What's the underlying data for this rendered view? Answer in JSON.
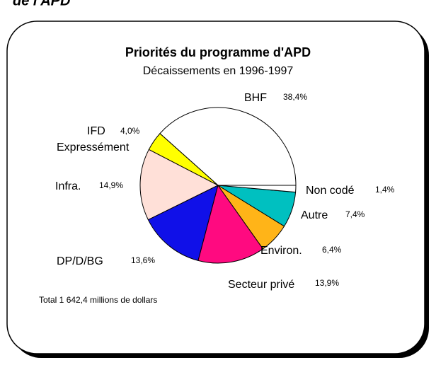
{
  "header_text": "de l'APD",
  "chart_data": {
    "type": "pie",
    "title": "Priorités du programme d'APD",
    "subtitle": "Décaissements en 1996-1997",
    "categories": [
      "BHF",
      "IFD\nExpressément",
      "Infra.",
      "DP/D/BG",
      "Secteur privé",
      "Environ.",
      "Autre",
      "Non codé"
    ],
    "values": [
      38.4,
      4.0,
      14.9,
      13.6,
      13.9,
      6.4,
      7.4,
      1.4
    ],
    "value_labels": [
      "38,4%",
      "4,0%",
      "14,9%",
      "13,6%",
      "13,9%",
      "6,4%",
      "7,4%",
      "1,4%"
    ],
    "colors": [
      "#ffffff",
      "#ffff00",
      "#ffe0d8",
      "#1010e8",
      "#ff0a80",
      "#ffb418",
      "#00c0c0",
      "#ffffff"
    ],
    "annotation": "Total  1 642,4 millions de dollars"
  }
}
